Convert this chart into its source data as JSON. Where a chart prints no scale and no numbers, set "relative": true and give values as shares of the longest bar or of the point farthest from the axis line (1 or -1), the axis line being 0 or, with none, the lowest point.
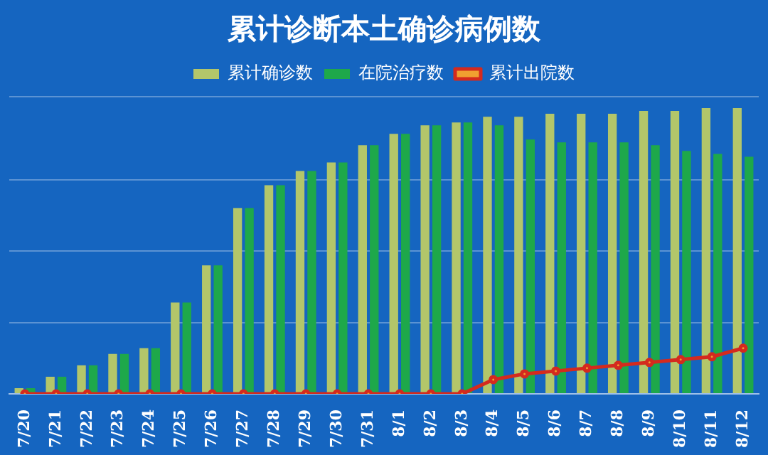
{
  "chart_data": {
    "type": "bar",
    "title": "累计诊断本土确诊病例数",
    "relative": true,
    "legend": "top",
    "grid": "y",
    "marker": "circle",
    "categories": [
      "7/20",
      "7/21",
      "7/22",
      "7/23",
      "7/24",
      "7/25",
      "7/26",
      "7/27",
      "7/28",
      "7/29",
      "7/30",
      "7/31",
      "8/1",
      "8/2",
      "8/3",
      "8/4",
      "8/5",
      "8/6",
      "8/7",
      "8/8",
      "8/9",
      "8/10",
      "8/11",
      "8/12"
    ],
    "series": [
      {
        "name": "累计确诊数",
        "color": "#b3c66a",
        "values": [
          0.02,
          0.06,
          0.1,
          0.14,
          0.16,
          0.32,
          0.45,
          0.65,
          0.73,
          0.78,
          0.81,
          0.87,
          0.91,
          0.94,
          0.95,
          0.97,
          0.97,
          0.98,
          0.98,
          0.98,
          0.99,
          0.99,
          1,
          1
        ]
      },
      {
        "name": "在院治疗数",
        "color": "#1ea84a",
        "values": [
          0.02,
          0.06,
          0.1,
          0.14,
          0.16,
          0.32,
          0.45,
          0.65,
          0.73,
          0.78,
          0.81,
          0.87,
          0.91,
          0.94,
          0.95,
          0.94,
          0.89,
          0.88,
          0.88,
          0.88,
          0.87,
          0.85,
          0.84,
          0.83
        ]
      },
      {
        "name": "累计出院数",
        "type": "line",
        "color": "#d42a1e",
        "values": [
          0,
          0,
          0,
          0,
          0,
          0,
          0,
          0,
          0,
          0,
          0,
          0,
          0,
          0,
          0,
          0.05,
          0.07,
          0.08,
          0.09,
          0.1,
          0.11,
          0.12,
          0.13,
          0.16
        ]
      }
    ]
  }
}
